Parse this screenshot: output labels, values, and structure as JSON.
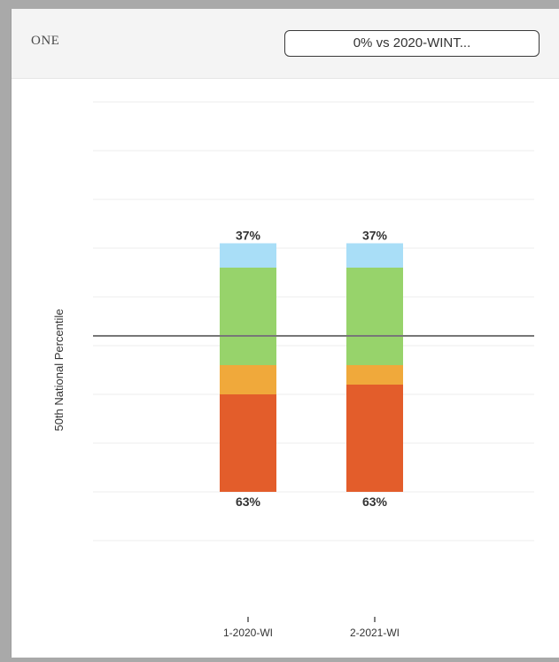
{
  "card": {
    "title": "ONE",
    "comparison_select": "0% vs 2020-WINT..."
  },
  "chart_data": {
    "type": "bar",
    "stacked": true,
    "ylabel": "50th National Percentile",
    "categories": [
      "1-2020-WI",
      "2-2021-WI"
    ],
    "series": [
      {
        "color": "#e35d2b",
        "values": [
          20,
          22
        ]
      },
      {
        "color": "#f0a93b",
        "values": [
          6,
          4
        ]
      },
      {
        "color": "#97d36b",
        "values": [
          20,
          20
        ]
      },
      {
        "color": "#a9def7",
        "values": [
          5,
          5
        ]
      }
    ],
    "top_labels": [
      "37%",
      "37%"
    ],
    "bottom_labels": [
      "63%",
      "63%"
    ],
    "reference_line": {
      "value": 32,
      "color": "#777777"
    },
    "ylim": [
      -10,
      80
    ],
    "grid": true
  }
}
